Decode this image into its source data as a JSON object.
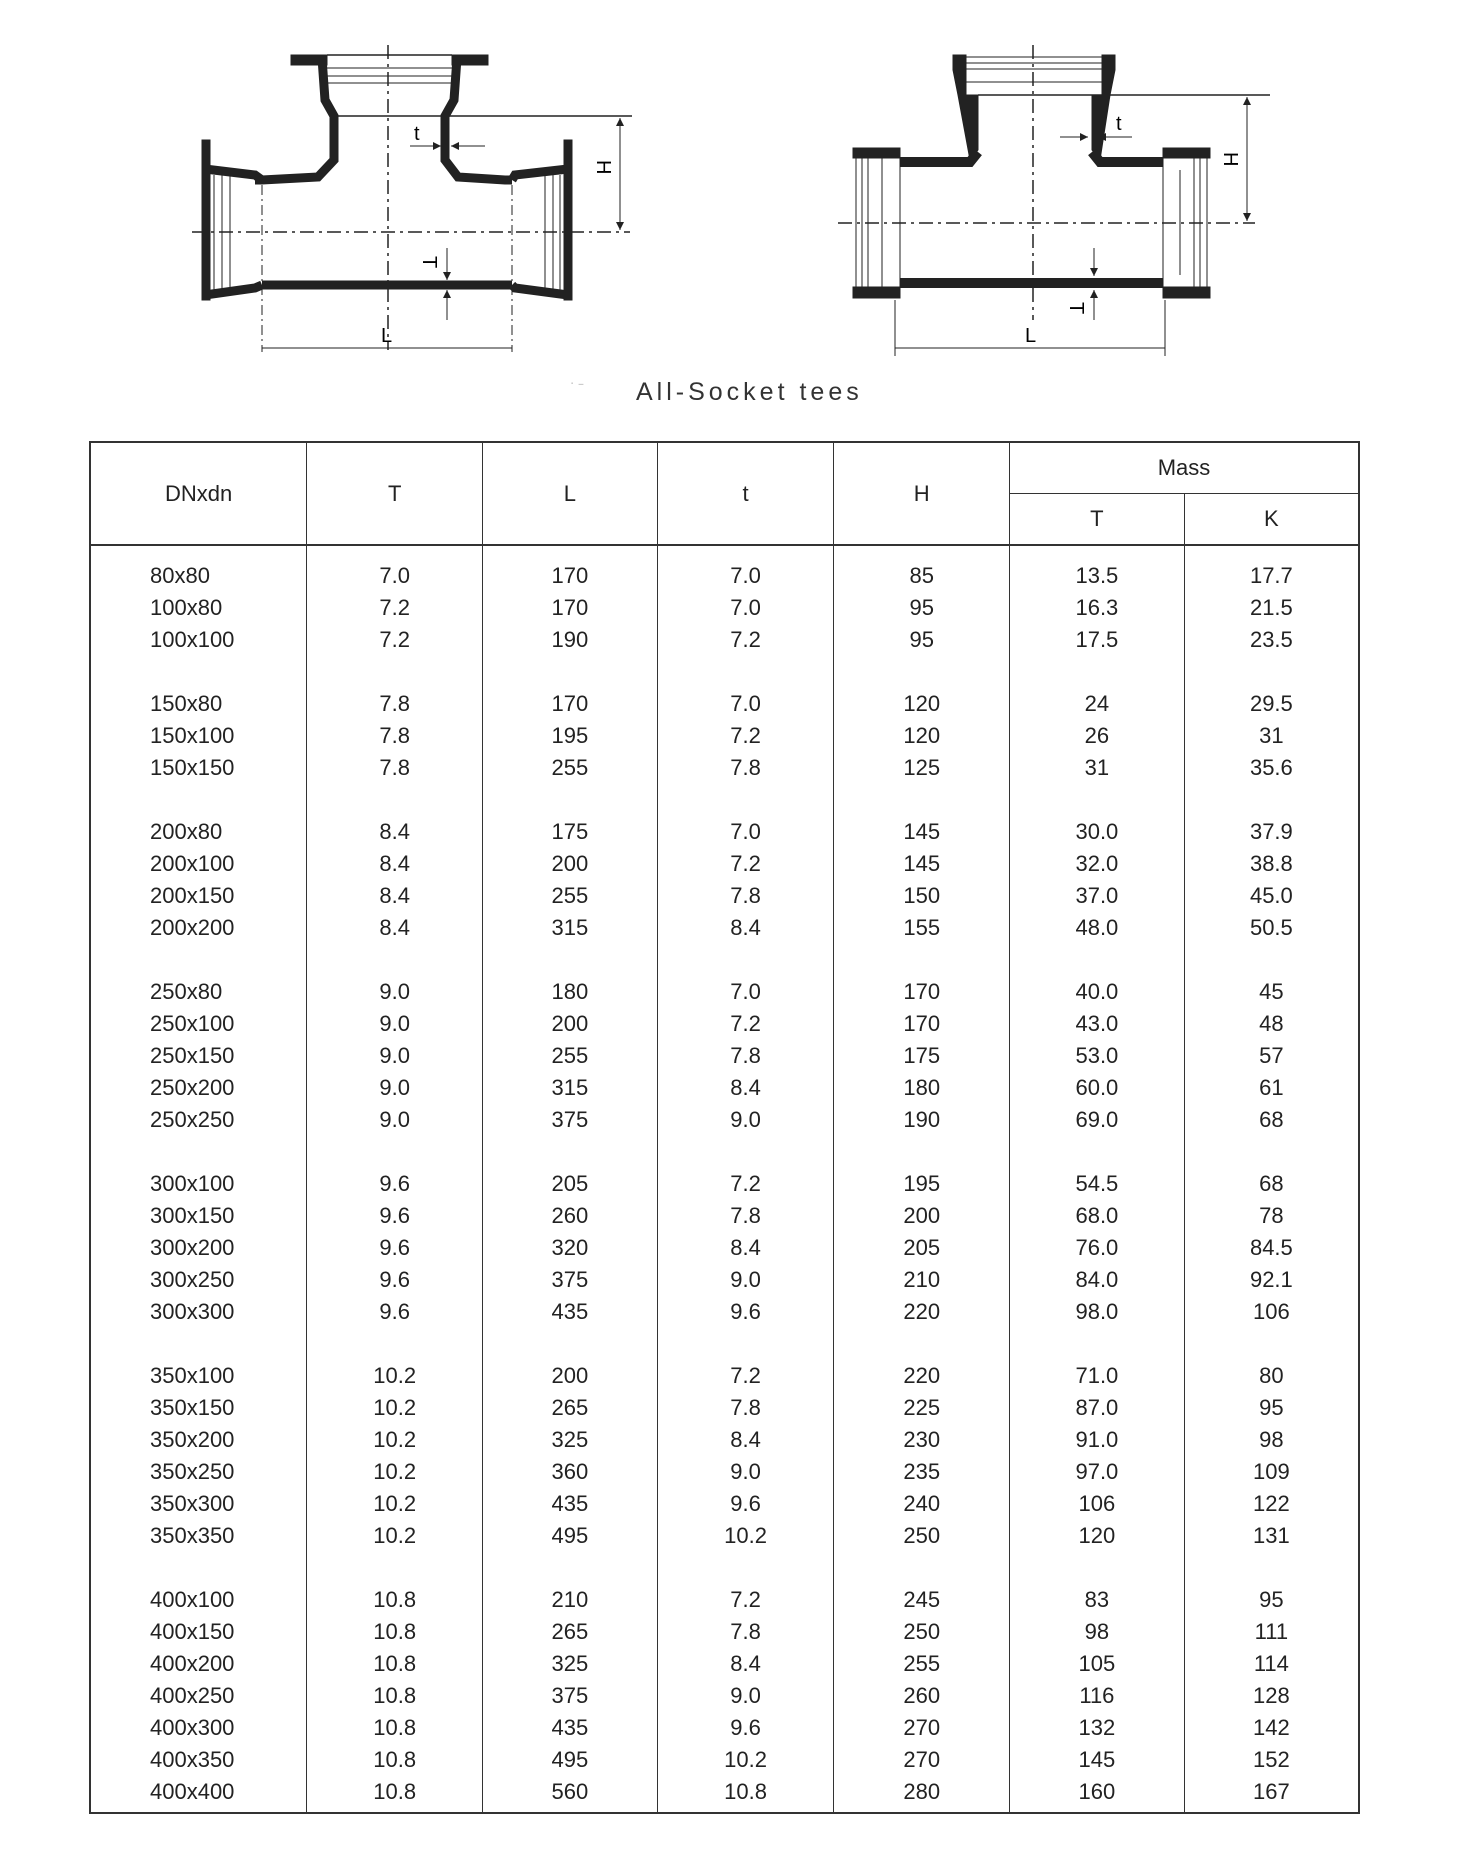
{
  "figure": {
    "caption": "All-Socket tees",
    "labels": {
      "t": "t",
      "H": "H",
      "T": "T",
      "L": "L"
    }
  },
  "table": {
    "headers": {
      "dn": "DNxdn",
      "T": "T",
      "L": "L",
      "t": "t",
      "H": "H",
      "mass": "Mass",
      "mass_T": "T",
      "mass_K": "K"
    },
    "groups": [
      [
        [
          "80x80",
          "7.0",
          "170",
          "7.0",
          "85",
          "13.5",
          "17.7"
        ],
        [
          "100x80",
          "7.2",
          "170",
          "7.0",
          "95",
          "16.3",
          "21.5"
        ],
        [
          "100x100",
          "7.2",
          "190",
          "7.2",
          "95",
          "17.5",
          "23.5"
        ]
      ],
      [
        [
          "150x80",
          "7.8",
          "170",
          "7.0",
          "120",
          "24",
          "29.5"
        ],
        [
          "150x100",
          "7.8",
          "195",
          "7.2",
          "120",
          "26",
          "31"
        ],
        [
          "150x150",
          "7.8",
          "255",
          "7.8",
          "125",
          "31",
          "35.6"
        ]
      ],
      [
        [
          "200x80",
          "8.4",
          "175",
          "7.0",
          "145",
          "30.0",
          "37.9"
        ],
        [
          "200x100",
          "8.4",
          "200",
          "7.2",
          "145",
          "32.0",
          "38.8"
        ],
        [
          "200x150",
          "8.4",
          "255",
          "7.8",
          "150",
          "37.0",
          "45.0"
        ],
        [
          "200x200",
          "8.4",
          "315",
          "8.4",
          "155",
          "48.0",
          "50.5"
        ]
      ],
      [
        [
          "250x80",
          "9.0",
          "180",
          "7.0",
          "170",
          "40.0",
          "45"
        ],
        [
          "250x100",
          "9.0",
          "200",
          "7.2",
          "170",
          "43.0",
          "48"
        ],
        [
          "250x150",
          "9.0",
          "255",
          "7.8",
          "175",
          "53.0",
          "57"
        ],
        [
          "250x200",
          "9.0",
          "315",
          "8.4",
          "180",
          "60.0",
          "61"
        ],
        [
          "250x250",
          "9.0",
          "375",
          "9.0",
          "190",
          "69.0",
          "68"
        ]
      ],
      [
        [
          "300x100",
          "9.6",
          "205",
          "7.2",
          "195",
          "54.5",
          "68"
        ],
        [
          "300x150",
          "9.6",
          "260",
          "7.8",
          "200",
          "68.0",
          "78"
        ],
        [
          "300x200",
          "9.6",
          "320",
          "8.4",
          "205",
          "76.0",
          "84.5"
        ],
        [
          "300x250",
          "9.6",
          "375",
          "9.0",
          "210",
          "84.0",
          "92.1"
        ],
        [
          "300x300",
          "9.6",
          "435",
          "9.6",
          "220",
          "98.0",
          "106"
        ]
      ],
      [
        [
          "350x100",
          "10.2",
          "200",
          "7.2",
          "220",
          "71.0",
          "80"
        ],
        [
          "350x150",
          "10.2",
          "265",
          "7.8",
          "225",
          "87.0",
          "95"
        ],
        [
          "350x200",
          "10.2",
          "325",
          "8.4",
          "230",
          "91.0",
          "98"
        ],
        [
          "350x250",
          "10.2",
          "360",
          "9.0",
          "235",
          "97.0",
          "109"
        ],
        [
          "350x300",
          "10.2",
          "435",
          "9.6",
          "240",
          "106",
          "122"
        ],
        [
          "350x350",
          "10.2",
          "495",
          "10.2",
          "250",
          "120",
          "131"
        ]
      ],
      [
        [
          "400x100",
          "10.8",
          "210",
          "7.2",
          "245",
          "83",
          "95"
        ],
        [
          "400x150",
          "10.8",
          "265",
          "7.8",
          "250",
          "98",
          "111"
        ],
        [
          "400x200",
          "10.8",
          "325",
          "8.4",
          "255",
          "105",
          "114"
        ],
        [
          "400x250",
          "10.8",
          "375",
          "9.0",
          "260",
          "116",
          "128"
        ],
        [
          "400x300",
          "10.8",
          "435",
          "9.6",
          "270",
          "132",
          "142"
        ],
        [
          "400x350",
          "10.8",
          "495",
          "10.2",
          "270",
          "145",
          "152"
        ],
        [
          "400x400",
          "10.8",
          "560",
          "10.8",
          "280",
          "160",
          "167"
        ]
      ]
    ]
  }
}
